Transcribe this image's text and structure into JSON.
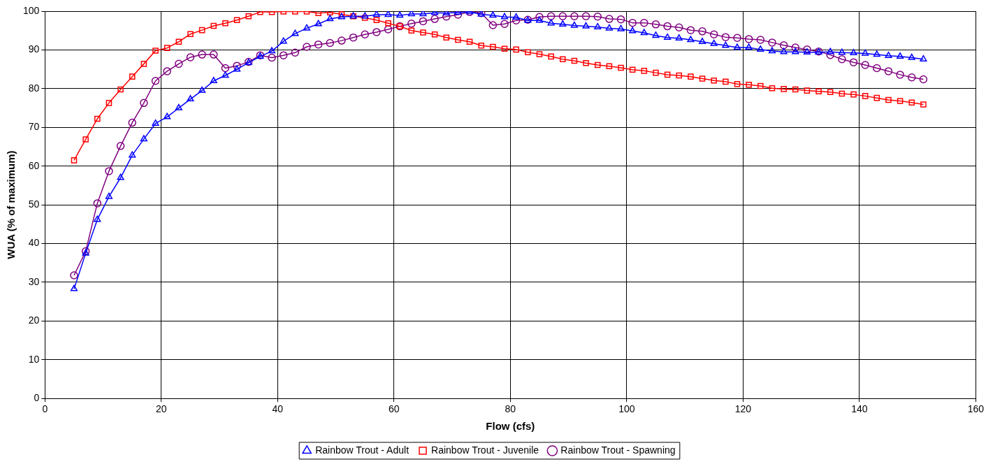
{
  "chart_data": {
    "type": "line",
    "xlabel": "Flow (cfs)",
    "ylabel": "WUA (% of maximum)",
    "x": [
      5,
      7,
      9,
      11,
      13,
      15,
      17,
      19,
      21,
      23,
      25,
      27,
      29,
      31,
      33,
      35,
      37,
      39,
      41,
      43,
      45,
      47,
      49,
      51,
      53,
      55,
      57,
      59,
      61,
      63,
      65,
      67,
      69,
      71,
      73,
      75,
      77,
      79,
      81,
      83,
      85,
      87,
      89,
      91,
      93,
      95,
      97,
      99,
      101,
      103,
      105,
      107,
      109,
      111,
      113,
      115,
      117,
      119,
      121,
      123,
      125,
      127,
      129,
      131,
      133,
      135,
      137,
      139,
      141,
      143,
      145,
      147,
      149,
      151
    ],
    "xlim": [
      0,
      160
    ],
    "xticks": [
      0,
      20,
      40,
      60,
      80,
      100,
      120,
      140,
      160
    ],
    "ylim": [
      0,
      100
    ],
    "yticks": [
      0,
      10,
      20,
      30,
      40,
      50,
      60,
      70,
      80,
      90,
      100
    ],
    "grid": true,
    "legend": "bottom",
    "line_style": "solid",
    "series": [
      {
        "name": "Rainbow Trout - Adult",
        "color": "#0000ff",
        "marker": "triangle",
        "values": [
          28.3,
          37.5,
          46.2,
          52.1,
          57,
          62.8,
          67,
          71,
          72.7,
          75,
          77.3,
          79.5,
          82,
          83.4,
          85,
          86.7,
          88.3,
          89.7,
          92.2,
          94.2,
          95.6,
          96.7,
          98,
          98.5,
          98.7,
          98.7,
          99.1,
          99.1,
          98.9,
          99.3,
          99.3,
          99.6,
          99.5,
          99.7,
          99.8,
          99.2,
          98.9,
          98.5,
          98.4,
          97.6,
          97.6,
          96.9,
          96.6,
          96.3,
          96.1,
          95.9,
          95.6,
          95.4,
          94.9,
          94.4,
          93.7,
          93.2,
          93,
          92.6,
          92.1,
          91.6,
          91.1,
          90.6,
          90.6,
          90.1,
          89.7,
          89.5,
          89.5,
          89.4,
          89.4,
          89.5,
          89.3,
          89.2,
          89.1,
          88.8,
          88.5,
          88.3,
          88,
          87.6
        ]
      },
      {
        "name": "Rainbow Trout - Juvenile",
        "color": "#ff0000",
        "marker": "square",
        "values": [
          61.5,
          66.9,
          72.2,
          76.3,
          79.8,
          83.1,
          86.4,
          89.8,
          90.5,
          92.1,
          94.1,
          95.1,
          96.2,
          96.9,
          97.7,
          98.7,
          99.8,
          99.8,
          99.9,
          99.9,
          99.9,
          99.5,
          99.7,
          99.2,
          98.7,
          98.3,
          97.7,
          96.9,
          96.1,
          95,
          94.5,
          94,
          93.2,
          92.6,
          92.1,
          91.1,
          90.8,
          90.3,
          90.1,
          89.4,
          88.9,
          88.3,
          87.6,
          87.2,
          86.6,
          86.1,
          85.8,
          85.4,
          84.9,
          84.6,
          84.1,
          83.6,
          83.4,
          83.1,
          82.6,
          82.1,
          81.8,
          81.2,
          81,
          80.7,
          80.1,
          79.9,
          79.8,
          79.5,
          79.3,
          79.1,
          78.7,
          78.5,
          78.1,
          77.6,
          77.1,
          76.8,
          76.4,
          75.9
        ]
      },
      {
        "name": "Rainbow Trout - Spawning",
        "color": "#800080",
        "marker": "circle",
        "values": [
          31.8,
          38,
          50.4,
          58.7,
          65.2,
          71.2,
          76.3,
          82,
          84.5,
          86.4,
          88.1,
          88.8,
          88.8,
          85.3,
          85.9,
          86.9,
          88.6,
          88,
          88.6,
          89.3,
          90.8,
          91.4,
          91.8,
          92.4,
          93.2,
          94,
          94.6,
          95.3,
          96.1,
          96.8,
          97.4,
          98,
          98.6,
          99.1,
          99.8,
          99.5,
          96.4,
          96.7,
          97.6,
          97.8,
          98.5,
          98.7,
          98.7,
          98.7,
          98.7,
          98.6,
          98,
          97.9,
          97,
          97,
          96.6,
          96.1,
          95.8,
          95.1,
          94.8,
          94,
          93.3,
          93.1,
          92.8,
          92.6,
          91.9,
          91.2,
          90.6,
          90.1,
          89.6,
          88.7,
          87.6,
          86.8,
          86.1,
          85.3,
          84.5,
          83.6,
          82.9,
          82.4
        ]
      }
    ]
  }
}
